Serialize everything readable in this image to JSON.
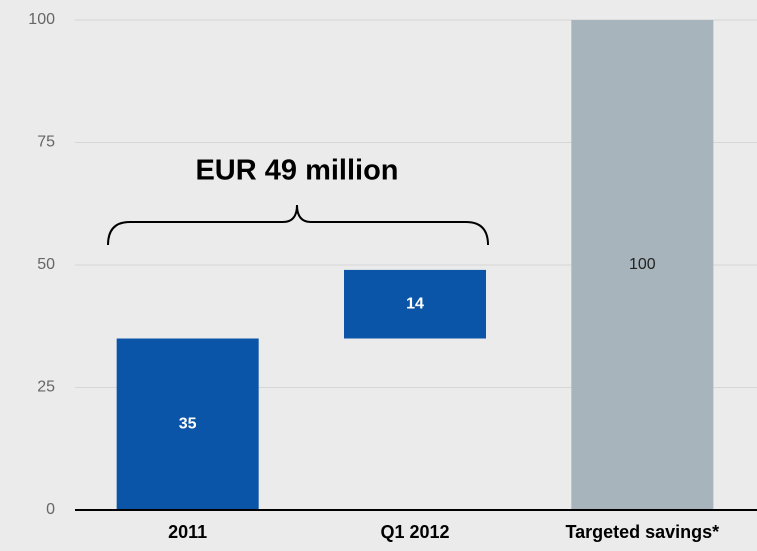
{
  "chart_data": {
    "type": "waterfall",
    "categories": [
      "2011",
      "Q1 2012",
      "Targeted savings*"
    ],
    "values": [
      35,
      14,
      100
    ],
    "measures": [
      "relative",
      "relative",
      "absolute"
    ],
    "colors": [
      "#0b55a8",
      "#0b55a8",
      "#a8b4bc"
    ],
    "annotation": "EUR 49 million",
    "ylim": [
      0,
      100
    ],
    "yticks": [
      0,
      25,
      50,
      75,
      100
    ],
    "grid": true
  }
}
